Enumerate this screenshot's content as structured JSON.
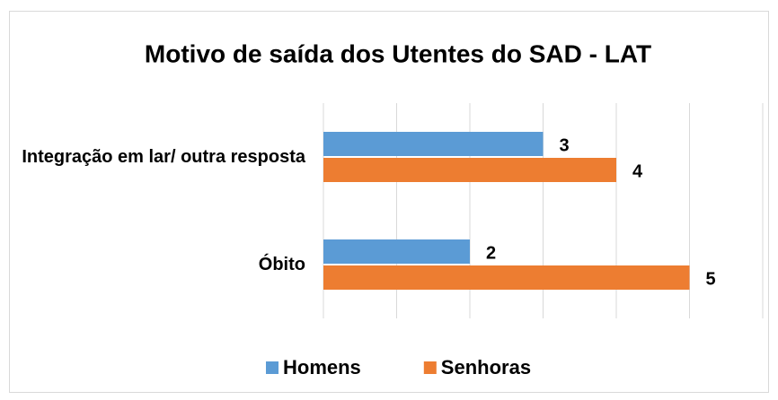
{
  "chart_data": {
    "type": "hbar",
    "title": "Motivo de saída dos Utentes do SAD - LAT",
    "categories": [
      "Integração em lar/ outra resposta",
      "Óbito"
    ],
    "series": [
      {
        "name": "Homens",
        "color": "#5b9bd5",
        "values": [
          3,
          2
        ]
      },
      {
        "name": "Senhoras",
        "color": "#ed7d31",
        "values": [
          4,
          5
        ]
      }
    ],
    "xlim": [
      0,
      6
    ],
    "xticks": [
      0,
      1,
      2,
      3,
      4,
      5,
      6
    ],
    "grid": true,
    "legend": "bottom"
  }
}
